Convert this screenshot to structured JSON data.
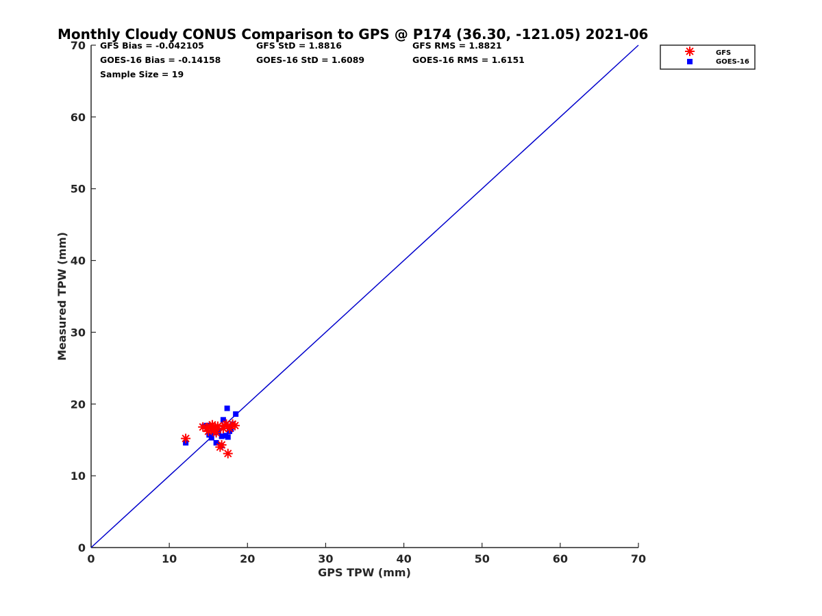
{
  "chart_data": {
    "type": "scatter",
    "title": "Monthly Cloudy CONUS Comparison to GPS @ P174 (36.30, -121.05) 2021-06",
    "xlabel": "GPS TPW (mm)",
    "ylabel": "Measured TPW (mm)",
    "xlim": [
      0,
      70
    ],
    "ylim": [
      0,
      70
    ],
    "xticks": [
      0,
      10,
      20,
      30,
      40,
      50,
      60,
      70
    ],
    "yticks": [
      0,
      10,
      20,
      30,
      40,
      50,
      60,
      70
    ],
    "grid": false,
    "legend_position": "top-right, outside",
    "reference_line": {
      "name": "1:1 line",
      "color": "#0000cc",
      "points": [
        [
          0,
          0
        ],
        [
          70,
          70
        ]
      ]
    },
    "stats": {
      "gfs_bias": "GFS Bias = -0.042105",
      "gfs_std": "GFS StD = 1.8816",
      "gfs_rms": "GFS RMS = 1.8821",
      "goes_bias": "GOES-16 Bias = -0.14158",
      "goes_std": "GOES-16 StD = 1.6089",
      "goes_rms": "GOES-16 RMS = 1.6151",
      "sample_size": "Sample Size = 19"
    },
    "series": [
      {
        "name": "GFS",
        "marker": "asterisk",
        "color": "#ff0000",
        "points": [
          [
            12.1,
            15.2
          ],
          [
            14.3,
            16.8
          ],
          [
            14.8,
            16.6
          ],
          [
            15.2,
            16.9
          ],
          [
            15.5,
            17.1
          ],
          [
            15.7,
            16.4
          ],
          [
            15.9,
            16.7
          ],
          [
            16.2,
            16.9
          ],
          [
            16.5,
            14.0
          ],
          [
            16.7,
            14.3
          ],
          [
            16.9,
            16.6
          ],
          [
            17.1,
            17.0
          ],
          [
            17.3,
            17.2
          ],
          [
            17.5,
            13.1
          ],
          [
            17.7,
            16.6
          ],
          [
            18.1,
            17.2
          ],
          [
            18.4,
            17.0
          ],
          [
            15.0,
            16.2
          ],
          [
            16.0,
            16.0
          ]
        ]
      },
      {
        "name": "GOES-16",
        "marker": "square",
        "color": "#0000ff",
        "points": [
          [
            12.1,
            14.6
          ],
          [
            14.5,
            16.9
          ],
          [
            14.8,
            17.0
          ],
          [
            15.1,
            15.7
          ],
          [
            15.4,
            15.3
          ],
          [
            15.8,
            16.0
          ],
          [
            16.0,
            14.6
          ],
          [
            16.3,
            16.2
          ],
          [
            16.6,
            14.2
          ],
          [
            16.7,
            15.5
          ],
          [
            16.9,
            17.8
          ],
          [
            17.2,
            15.6
          ],
          [
            17.4,
            19.4
          ],
          [
            17.5,
            15.4
          ],
          [
            17.7,
            16.2
          ],
          [
            17.9,
            16.5
          ],
          [
            18.1,
            17.2
          ],
          [
            18.5,
            18.6
          ],
          [
            15.6,
            16.6
          ]
        ]
      }
    ]
  }
}
